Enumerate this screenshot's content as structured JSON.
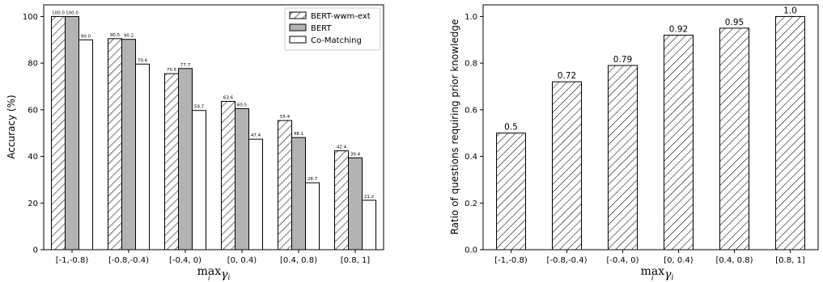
{
  "chart_data": [
    {
      "type": "bar",
      "categories": [
        "[-1,-0.8)",
        "[-0.8,-0.4)",
        "[-0.4, 0)",
        "[0, 0.4)",
        "[0.4, 0.8)",
        "[0.8, 1]"
      ],
      "series": [
        {
          "name": "BERT-wwm-ext",
          "values": [
            100.0,
            90.5,
            75.5,
            63.6,
            55.4,
            42.4
          ],
          "labels": [
            "100.0",
            "90.5",
            "75.5",
            "63.6",
            "55.4",
            "42.4"
          ],
          "fill": "hatch"
        },
        {
          "name": "BERT",
          "values": [
            100.0,
            90.2,
            77.7,
            60.5,
            48.1,
            39.4
          ],
          "labels": [
            "100.0",
            "90.2",
            "77.7",
            "60.5",
            "48.1",
            "39.4"
          ],
          "fill": "#b3b3b3"
        },
        {
          "name": "Co-Matching",
          "values": [
            90.0,
            79.6,
            59.7,
            47.4,
            28.7,
            21.2
          ],
          "labels": [
            "90.0",
            "79.6",
            "59.7",
            "47.4",
            "28.7",
            "21.2"
          ],
          "fill": "#ffffff"
        }
      ],
      "ylabel": "Accuracy (%)",
      "xlabel": "max_i γ_i",
      "ylim": [
        0,
        105
      ],
      "yticks": [
        "0",
        "20",
        "40",
        "60",
        "80",
        "100"
      ],
      "legend": "top-right",
      "grid": false
    },
    {
      "type": "bar",
      "categories": [
        "[-1,-0.8)",
        "[-0.8,-0.4)",
        "[-0.4, 0)",
        "[0, 0.4)",
        "[0.4, 0.8)",
        "[0.8, 1]"
      ],
      "values": [
        0.5,
        0.72,
        0.79,
        0.92,
        0.95,
        1.0
      ],
      "labels": [
        "0.5",
        "0.72",
        "0.79",
        "0.92",
        "0.95",
        "1.0"
      ],
      "ylabel": "Ratio of questions requiring prior knowledge",
      "xlabel": "max_i γ_i",
      "ylim": [
        0,
        1.05
      ],
      "yticks": [
        "0.0",
        "0.2",
        "0.4",
        "0.6",
        "0.8",
        "1.0"
      ],
      "fill": "hatch",
      "grid": false
    }
  ]
}
